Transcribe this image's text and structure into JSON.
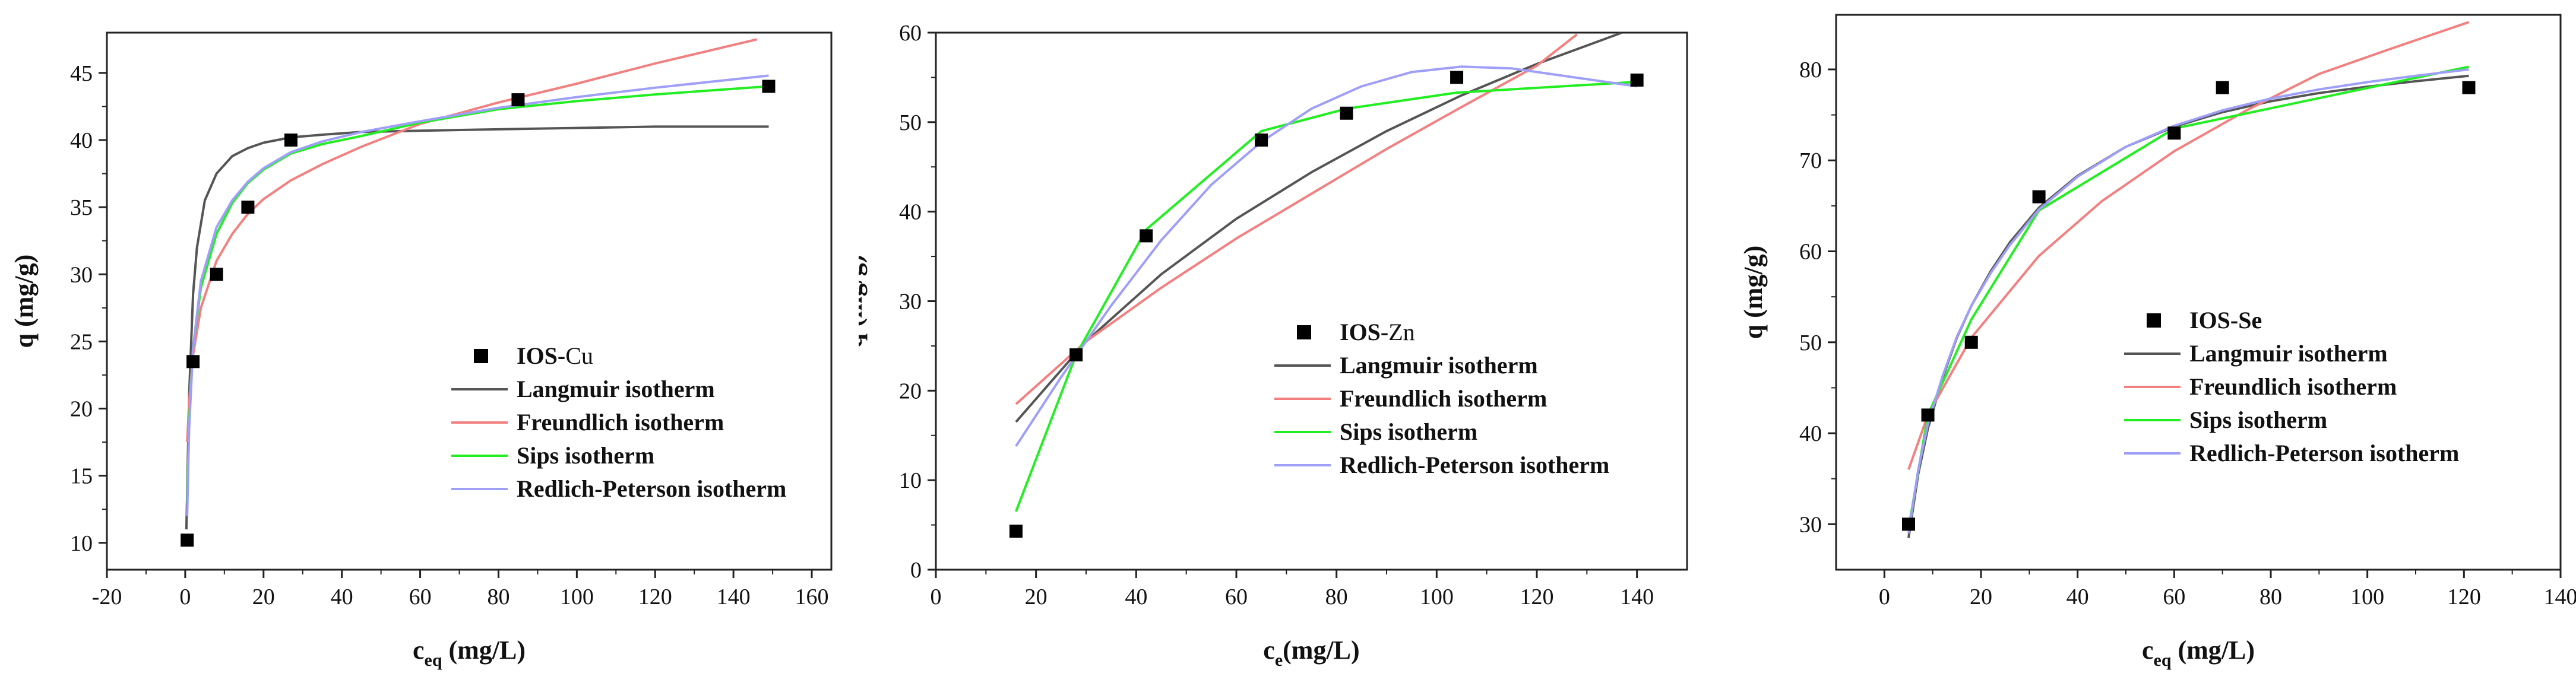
{
  "chart_data": [
    {
      "type": "scatter",
      "title": "",
      "xlabel_main": "c",
      "xlabel_sub": "eq",
      "xlabel_rest": " (mg/L)",
      "ylabel": "q (mg/g)",
      "xlim": [
        -20,
        165
      ],
      "ylim": [
        8,
        48
      ],
      "xticks": [
        -20,
        0,
        20,
        40,
        60,
        80,
        100,
        120,
        140,
        160
      ],
      "yticks": [
        10,
        15,
        20,
        25,
        30,
        35,
        40,
        45
      ],
      "legend_position": "center-right",
      "points_label": "IOS-Cu",
      "points_label_parts": [
        "IOS-",
        "Cu"
      ],
      "points": {
        "x": [
          0.5,
          2,
          8,
          16,
          27,
          85,
          149
        ],
        "y": [
          10.2,
          23.5,
          30,
          35,
          40,
          43,
          44
        ]
      },
      "series": [
        {
          "name": "Langmuir isotherm",
          "color": "#555555",
          "x": [
            0.3,
            1,
            2,
            3,
            5,
            8,
            12,
            16,
            20,
            27,
            35,
            45,
            60,
            80,
            100,
            120,
            149
          ],
          "y": [
            11,
            21,
            28.5,
            32,
            35.5,
            37.5,
            38.8,
            39.4,
            39.8,
            40.2,
            40.4,
            40.6,
            40.7,
            40.8,
            40.9,
            41,
            41
          ]
        },
        {
          "name": "Freundlich isotherm",
          "color": "#f28080",
          "x": [
            0.5,
            1,
            2,
            4,
            8,
            12,
            16,
            20,
            27,
            35,
            45,
            60,
            80,
            100,
            120,
            146
          ],
          "y": [
            17.5,
            20.5,
            24,
            27.5,
            31,
            33,
            34.5,
            35.6,
            37,
            38.2,
            39.5,
            41.2,
            42.8,
            44.2,
            45.7,
            47.5
          ]
        },
        {
          "name": "Sips isotherm",
          "color": "#22ee22",
          "x": [
            0.5,
            1,
            2,
            4,
            8,
            12,
            16,
            20,
            27,
            35,
            45,
            60,
            80,
            100,
            120,
            149
          ],
          "y": [
            13,
            19,
            24.5,
            29,
            33,
            35.3,
            36.8,
            37.8,
            39,
            39.7,
            40.3,
            41.3,
            42.3,
            42.9,
            43.4,
            44
          ]
        },
        {
          "name": "Redlich-Peterson isotherm",
          "color": "#9f9ff8",
          "x": [
            0.5,
            1,
            2,
            4,
            8,
            12,
            16,
            20,
            27,
            35,
            45,
            60,
            80,
            100,
            120,
            149
          ],
          "y": [
            12,
            18.5,
            24.5,
            29.5,
            33.5,
            35.5,
            36.9,
            37.9,
            39.1,
            39.9,
            40.6,
            41.4,
            42.4,
            43.2,
            43.9,
            44.8
          ]
        }
      ]
    },
    {
      "type": "scatter",
      "title": "",
      "xlabel_main": "c",
      "xlabel_sub": "e",
      "xlabel_rest": "(mg/L)",
      "ylabel": "q (mg/g)",
      "xlim": [
        0,
        150
      ],
      "ylim": [
        0,
        60
      ],
      "xticks": [
        0,
        20,
        40,
        60,
        80,
        100,
        120,
        140
      ],
      "yticks": [
        0,
        10,
        20,
        30,
        40,
        50,
        60
      ],
      "legend_position": "center-right",
      "points_label": "IOS-Zn",
      "points_label_parts": [
        "IOS-",
        "Zn"
      ],
      "points": {
        "x": [
          16,
          28,
          42,
          65,
          82,
          104,
          140
        ],
        "y": [
          4.3,
          24,
          37.3,
          48,
          51,
          55,
          54.7
        ]
      },
      "series": [
        {
          "name": "Langmuir isotherm",
          "color": "#555555",
          "x": [
            16,
            30,
            45,
            60,
            75,
            90,
            105,
            120,
            137
          ],
          "y": [
            16.5,
            25.5,
            33,
            39.2,
            44.4,
            49,
            53,
            56.5,
            60
          ]
        },
        {
          "name": "Freundlich isotherm",
          "color": "#f28080",
          "x": [
            16,
            30,
            45,
            60,
            75,
            90,
            105,
            120,
            128
          ],
          "y": [
            18.5,
            25.5,
            31.5,
            37,
            42,
            47,
            51.7,
            56.3,
            59.8
          ]
        },
        {
          "name": "Sips isotherm",
          "color": "#22ee22",
          "x": [
            16,
            28,
            42,
            65,
            82,
            104,
            140
          ],
          "y": [
            6.5,
            24,
            38,
            49,
            51.5,
            53.3,
            54.5
          ]
        },
        {
          "name": "Redlich-Peterson isotherm",
          "color": "#9f9ff8",
          "x": [
            16,
            25,
            35,
            45,
            55,
            65,
            75,
            85,
            95,
            105,
            115,
            125,
            140
          ],
          "y": [
            13.8,
            21.5,
            29.5,
            36.8,
            43,
            47.8,
            51.5,
            54,
            55.6,
            56.2,
            56,
            55.2,
            54
          ]
        }
      ]
    },
    {
      "type": "scatter",
      "title": "",
      "xlabel_main": "c",
      "xlabel_sub": "eq",
      "xlabel_rest": " (mg/L)",
      "ylabel": "q (mg/g)",
      "xlim": [
        -10,
        140
      ],
      "ylim": [
        25,
        86
      ],
      "xticks": [
        0,
        20,
        40,
        60,
        80,
        100,
        120,
        140
      ],
      "yticks": [
        30,
        40,
        50,
        60,
        70,
        80
      ],
      "legend_position": "center-right",
      "points_label": "IOS-Se",
      "points_label_parts": [
        "IOS-Se"
      ],
      "points": {
        "x": [
          5,
          9,
          18,
          32,
          60,
          70,
          121
        ],
        "y": [
          30,
          42,
          50,
          66,
          73,
          78,
          78
        ]
      },
      "series": [
        {
          "name": "Langmuir isotherm",
          "color": "#555555",
          "x": [
            5,
            7,
            9,
            12,
            15,
            18,
            22,
            26,
            32,
            40,
            50,
            60,
            70,
            80,
            90,
            100,
            110,
            121
          ],
          "y": [
            28.5,
            35.5,
            40.5,
            46,
            50.5,
            54,
            57.8,
            61,
            64.8,
            68.3,
            71.5,
            73.7,
            75.3,
            76.5,
            77.4,
            78.1,
            78.7,
            79.3
          ]
        },
        {
          "name": "Freundlich isotherm",
          "color": "#f28080",
          "x": [
            5,
            9,
            18,
            32,
            45,
            60,
            75,
            90,
            105,
            121
          ],
          "y": [
            36,
            42,
            50.5,
            59.5,
            65.5,
            71,
            75.5,
            79.5,
            82.3,
            85.2
          ]
        },
        {
          "name": "Sips isotherm",
          "color": "#22ee22",
          "x": [
            5,
            9,
            18,
            32,
            60,
            121
          ],
          "y": [
            29.5,
            42,
            52.5,
            64.5,
            73.5,
            80.3
          ]
        },
        {
          "name": "Redlich-Peterson isotherm",
          "color": "#9f9ff8",
          "x": [
            5,
            7,
            9,
            12,
            15,
            18,
            22,
            26,
            32,
            40,
            50,
            60,
            70,
            80,
            90,
            100,
            110,
            121
          ],
          "y": [
            29,
            36,
            41,
            46.2,
            50.6,
            54,
            57.6,
            60.7,
            64.6,
            68.2,
            71.5,
            73.8,
            75.5,
            76.8,
            77.8,
            78.6,
            79.3,
            80
          ]
        }
      ]
    }
  ]
}
